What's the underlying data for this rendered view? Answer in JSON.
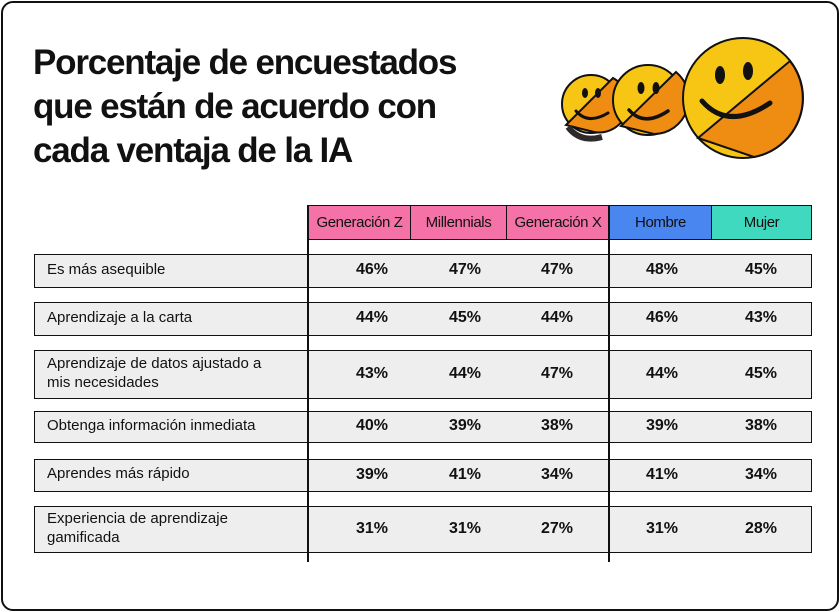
{
  "title_lines": [
    "Porcentaje de encuestados",
    "que están de acuerdo con",
    "cada ventaja de la IA"
  ],
  "colors": {
    "genz": "#f472a8",
    "millennials": "#f472a8",
    "genx": "#f472a8",
    "hombre": "#4a86ef",
    "mujer": "#3fd9bf",
    "row_bg": "#eeeeee",
    "smiley_yellow": "#f7c615",
    "smiley_orange": "#ef8c12"
  },
  "decoration": {
    "smileys": 3,
    "icon": "smiley-face-icon"
  },
  "chart_data": {
    "type": "table",
    "columns": [
      "Generación Z",
      "Millennials",
      "Generación X",
      "Hombre",
      "Mujer"
    ],
    "rows": [
      {
        "label": "Es más asequible",
        "values": [
          "46%",
          "47%",
          "47%",
          "48%",
          "45%"
        ]
      },
      {
        "label": "Aprendizaje a la carta",
        "values": [
          "44%",
          "45%",
          "44%",
          "46%",
          "43%"
        ]
      },
      {
        "label": "Aprendizaje de datos ajustado a mis necesidades",
        "label_lines": [
          "Aprendizaje de datos ajustado a",
          "mis necesidades"
        ],
        "values": [
          "43%",
          "44%",
          "47%",
          "44%",
          "45%"
        ]
      },
      {
        "label": "Obtenga información inmediata",
        "values": [
          "40%",
          "39%",
          "38%",
          "39%",
          "38%"
        ]
      },
      {
        "label": "Aprendes más rápido",
        "values": [
          "39%",
          "41%",
          "34%",
          "41%",
          "34%"
        ]
      },
      {
        "label": "Experiencia de aprendizaje gamificada",
        "label_lines": [
          "Experiencia de aprendizaje",
          "gamificada"
        ],
        "values": [
          "31%",
          "31%",
          "27%",
          "31%",
          "28%"
        ]
      }
    ]
  }
}
